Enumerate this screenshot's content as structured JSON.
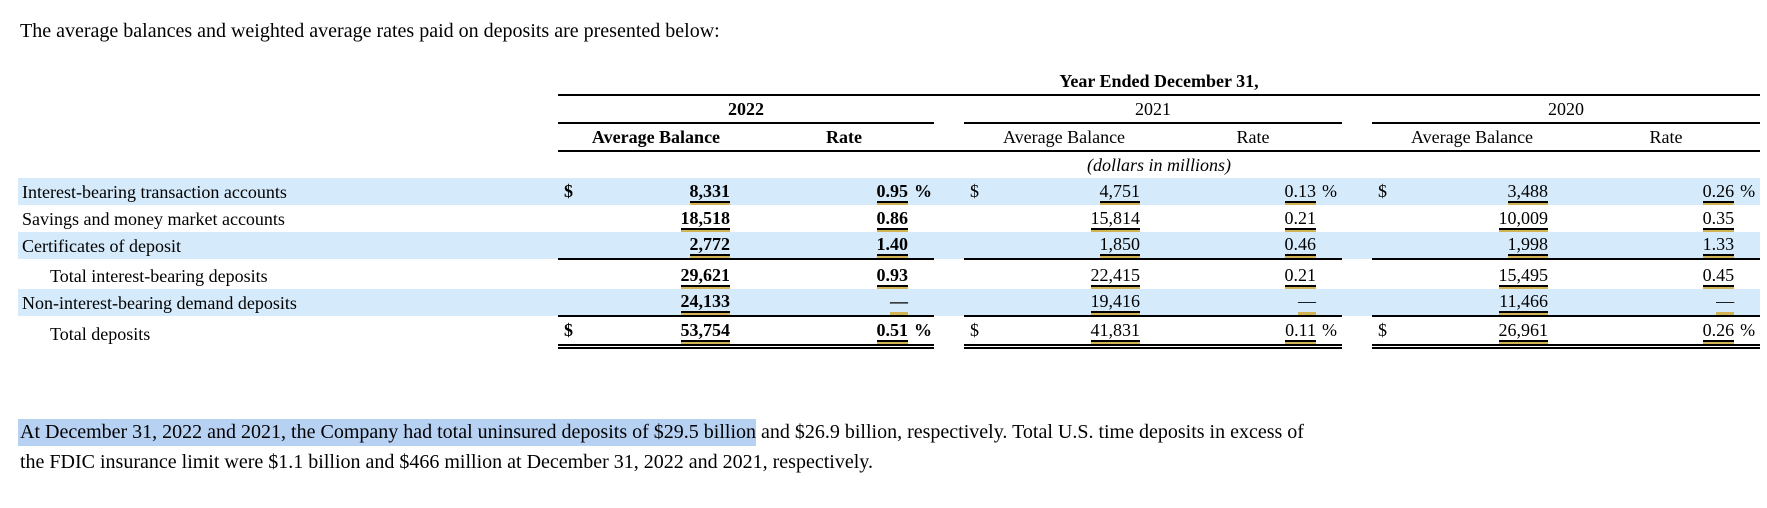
{
  "intro": "The average balances and weighted average rates paid on deposits are presented below:",
  "table": {
    "title": "Year Ended December 31,",
    "units_note": "(dollars in millions)",
    "years": [
      "2022",
      "2021",
      "2020"
    ],
    "balance_header": "Average Balance",
    "rate_header": "Rate",
    "rows": [
      {
        "label": "Interest-bearing transaction accounts",
        "indent": false,
        "shaded": true,
        "rule_top": false,
        "double_bottom": false,
        "cells": [
          {
            "dollar": "$",
            "balance": "8,331",
            "rate": "0.95",
            "pct": "%"
          },
          {
            "dollar": "$",
            "balance": "4,751",
            "rate": "0.13",
            "pct": "%"
          },
          {
            "dollar": "$",
            "balance": "3,488",
            "rate": "0.26",
            "pct": "%"
          }
        ]
      },
      {
        "label": "Savings and money market accounts",
        "indent": false,
        "shaded": false,
        "rule_top": false,
        "double_bottom": false,
        "cells": [
          {
            "dollar": "",
            "balance": "18,518",
            "rate": "0.86",
            "pct": ""
          },
          {
            "dollar": "",
            "balance": "15,814",
            "rate": "0.21",
            "pct": ""
          },
          {
            "dollar": "",
            "balance": "10,009",
            "rate": "0.35",
            "pct": ""
          }
        ]
      },
      {
        "label": "Certificates of deposit",
        "indent": false,
        "shaded": true,
        "rule_top": false,
        "double_bottom": false,
        "cells": [
          {
            "dollar": "",
            "balance": "2,772",
            "rate": "1.40",
            "pct": ""
          },
          {
            "dollar": "",
            "balance": "1,850",
            "rate": "0.46",
            "pct": ""
          },
          {
            "dollar": "",
            "balance": "1,998",
            "rate": "1.33",
            "pct": ""
          }
        ]
      },
      {
        "label": "Total interest-bearing deposits",
        "indent": true,
        "shaded": false,
        "rule_top": true,
        "double_bottom": false,
        "cells": [
          {
            "dollar": "",
            "balance": "29,621",
            "rate": "0.93",
            "pct": ""
          },
          {
            "dollar": "",
            "balance": "22,415",
            "rate": "0.21",
            "pct": ""
          },
          {
            "dollar": "",
            "balance": "15,495",
            "rate": "0.45",
            "pct": ""
          }
        ]
      },
      {
        "label": "Non-interest-bearing demand deposits",
        "indent": false,
        "shaded": true,
        "rule_top": false,
        "double_bottom": false,
        "cells": [
          {
            "dollar": "",
            "balance": "24,133",
            "rate": "—",
            "pct": "",
            "dash": true
          },
          {
            "dollar": "",
            "balance": "19,416",
            "rate": "—",
            "pct": "",
            "dash": true
          },
          {
            "dollar": "",
            "balance": "11,466",
            "rate": "—",
            "pct": "",
            "dash": true
          }
        ]
      },
      {
        "label": "Total deposits",
        "indent": true,
        "shaded": false,
        "rule_top": true,
        "double_bottom": true,
        "cells": [
          {
            "dollar": "$",
            "balance": "53,754",
            "rate": "0.51",
            "pct": "%"
          },
          {
            "dollar": "$",
            "balance": "41,831",
            "rate": "0.11",
            "pct": "%"
          },
          {
            "dollar": "$",
            "balance": "26,961",
            "rate": "0.26",
            "pct": "%"
          }
        ]
      }
    ]
  },
  "paragraph": {
    "highlighted": "At December 31, 2022 and 2021, the Company had total uninsured deposits of $29.5 billion",
    "rest_line1": " and $26.9 billion, respectively. Total U.S. time deposits in excess of",
    "line2": "the FDIC insurance limit were $1.1 billion and $466 million at December 31, 2022 and 2021, respectively."
  },
  "colors": {
    "row_stripe": "#d5eafa",
    "text_selection": "#b7d1f3",
    "tagged_fact_underline": "#d2b355"
  }
}
